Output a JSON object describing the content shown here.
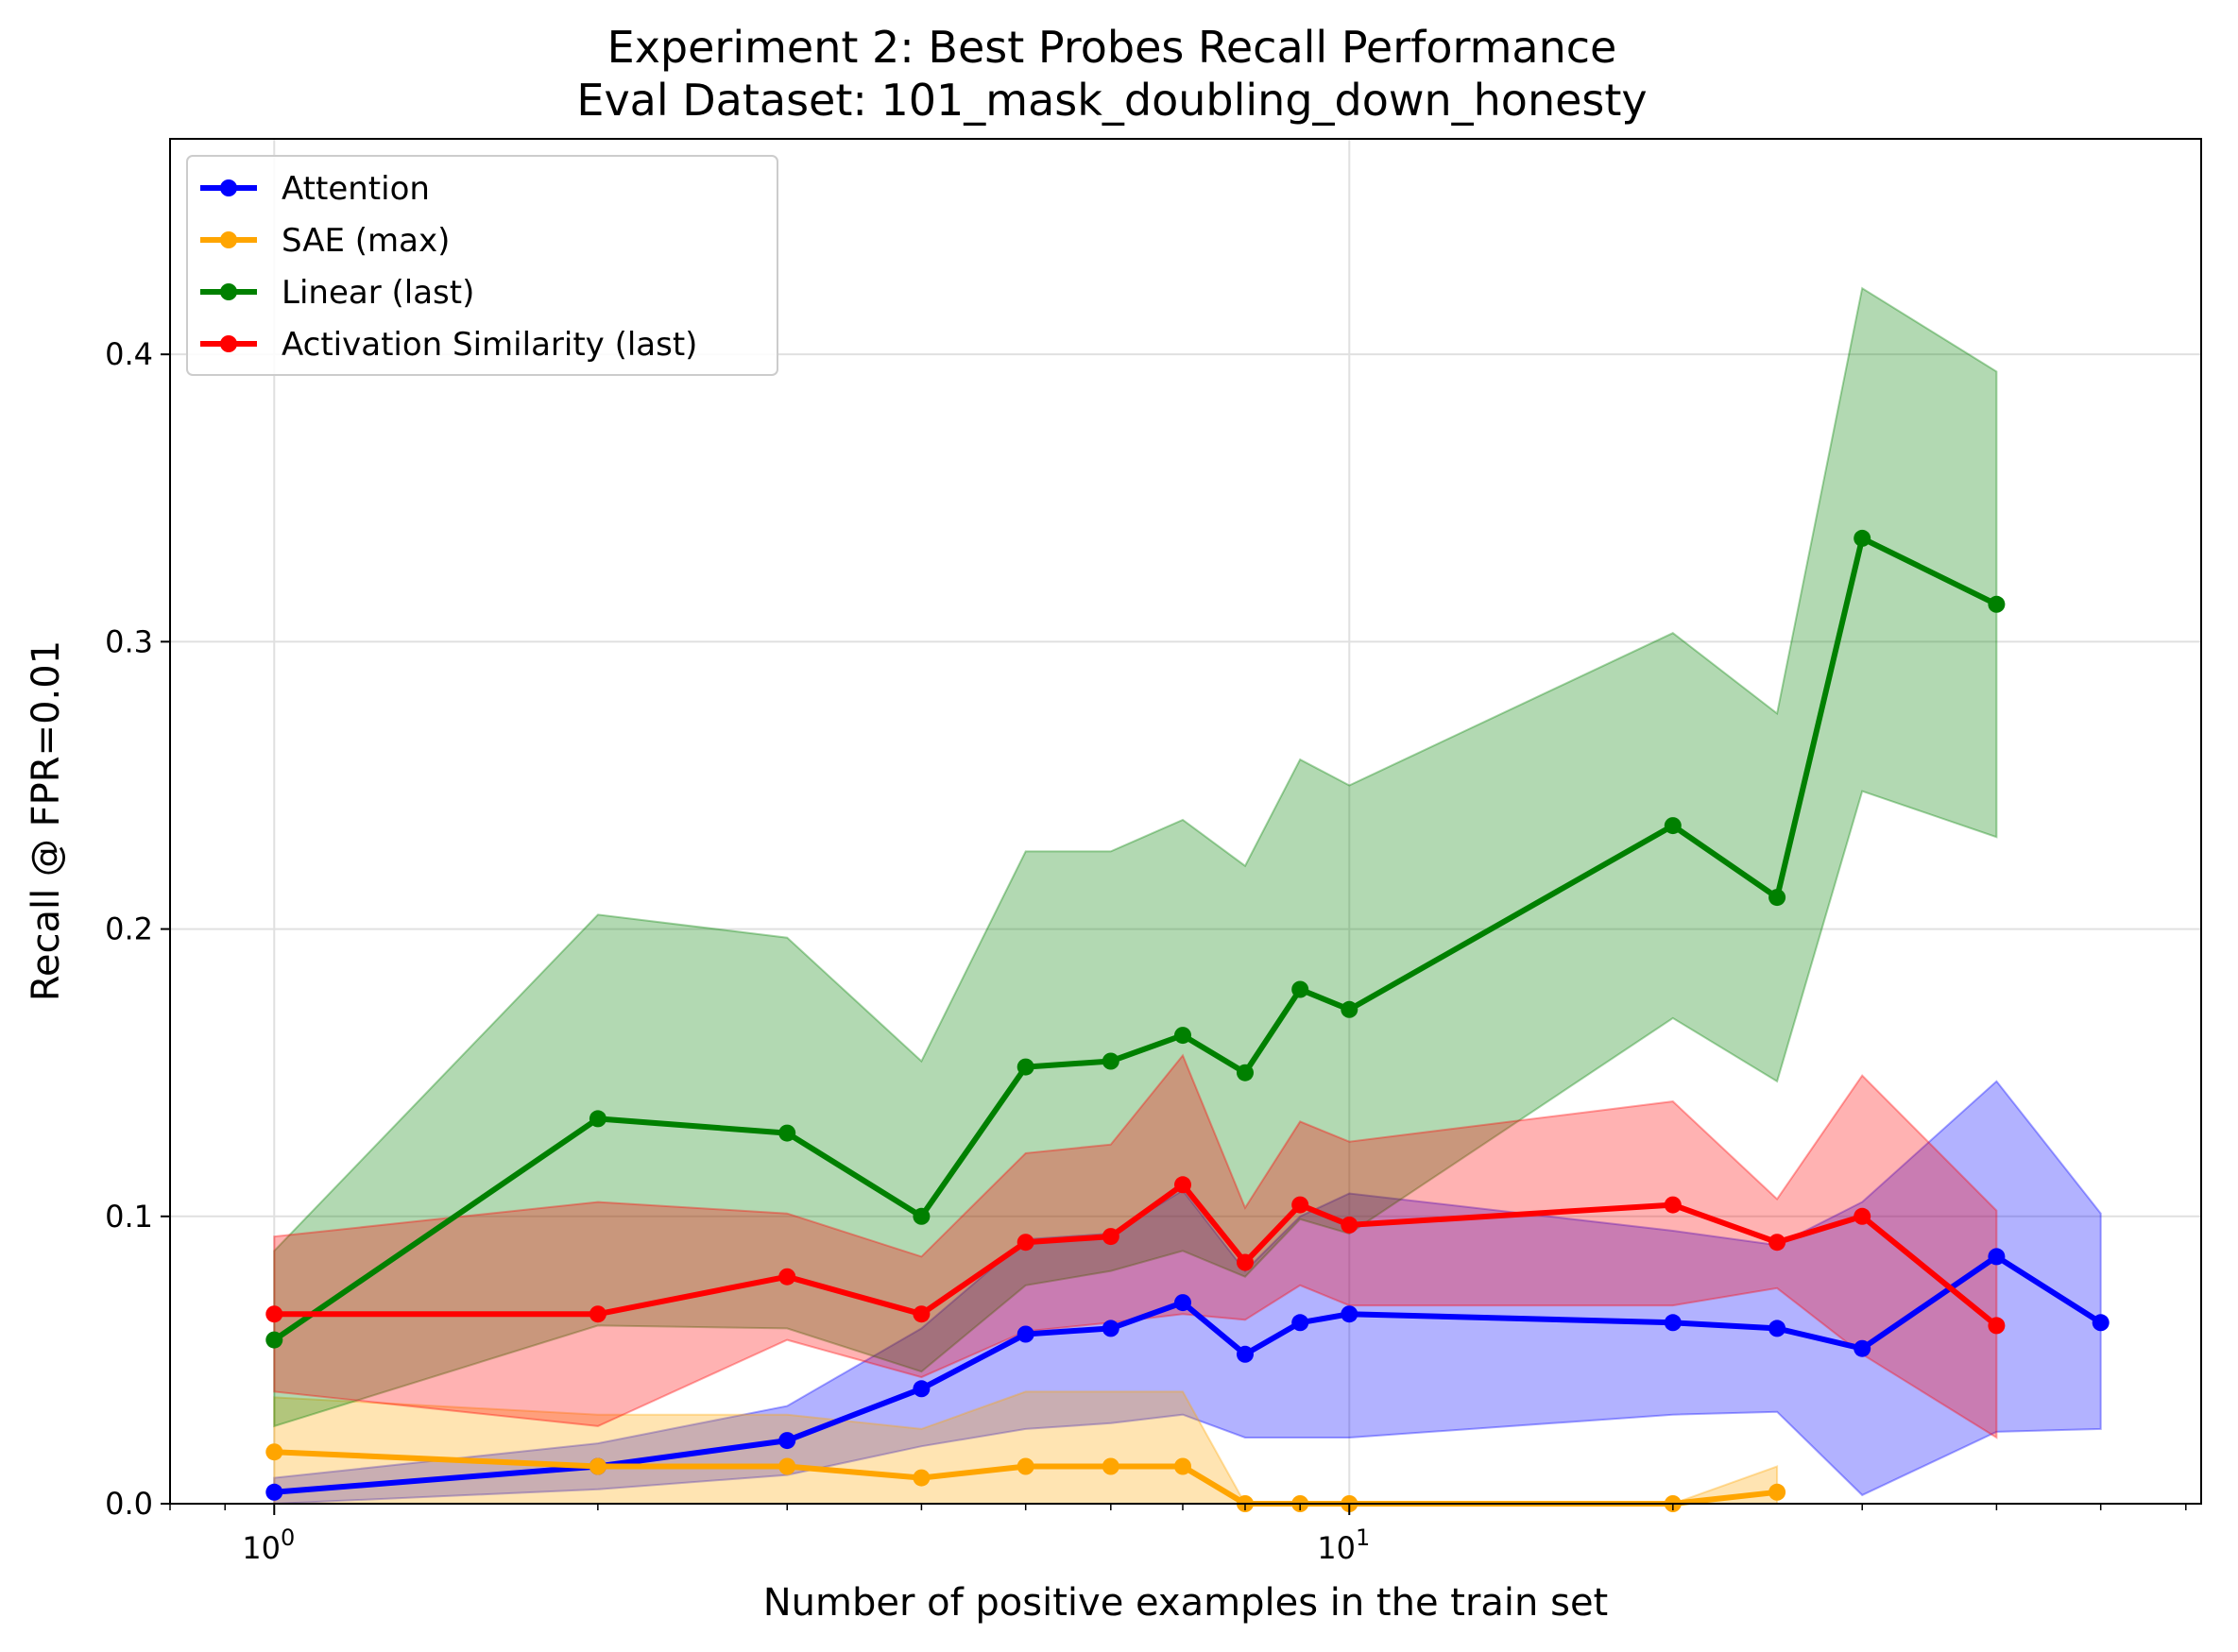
{
  "chart_data": {
    "type": "line",
    "title": "Experiment 2: Best Probes Recall Performance",
    "subtitle": "Eval Dataset: 101_mask_doubling_down_honesty",
    "xlabel": "Number of positive examples in the train set",
    "ylabel": "Recall @ FPR=0.01",
    "xscale": "log",
    "xlim": [
      0.8,
      62
    ],
    "ylim": [
      0,
      0.475
    ],
    "x_ticks": [
      {
        "value": 1,
        "base": "10",
        "exp": "0"
      },
      {
        "value": 10,
        "base": "10",
        "exp": "1"
      }
    ],
    "y_ticks": [
      {
        "value": 0.0,
        "label": "0.0"
      },
      {
        "value": 0.1,
        "label": "0.1"
      },
      {
        "value": 0.2,
        "label": "0.2"
      },
      {
        "value": 0.3,
        "label": "0.3"
      },
      {
        "value": 0.4,
        "label": "0.4"
      }
    ],
    "grid": true,
    "legend_position": "top-left",
    "series": [
      {
        "name": "Attention",
        "color": "#0000ff",
        "x": [
          1,
          2,
          3,
          4,
          5,
          6,
          7,
          8,
          9,
          10,
          20,
          25,
          30,
          40,
          50
        ],
        "y": [
          0.004,
          0.013,
          0.022,
          0.04,
          0.059,
          0.061,
          0.07,
          0.052,
          0.063,
          0.066,
          0.063,
          0.061,
          0.054,
          0.086,
          0.063
        ],
        "lower": [
          0.0,
          0.005,
          0.01,
          0.02,
          0.026,
          0.028,
          0.031,
          0.023,
          0.023,
          0.023,
          0.031,
          0.032,
          0.003,
          0.025,
          0.026
        ],
        "upper": [
          0.009,
          0.021,
          0.034,
          0.061,
          0.092,
          0.094,
          0.109,
          0.081,
          0.1,
          0.108,
          0.095,
          0.09,
          0.105,
          0.147,
          0.101
        ]
      },
      {
        "name": "SAE (max)",
        "color": "#ffa500",
        "x": [
          1,
          2,
          3,
          4,
          5,
          6,
          7,
          8,
          9,
          10,
          20,
          25
        ],
        "y": [
          0.018,
          0.013,
          0.013,
          0.009,
          0.013,
          0.013,
          0.013,
          0.0,
          0.0,
          0.0,
          0.0,
          0.004
        ],
        "lower": [
          0.0,
          0.0,
          0.0,
          0.0,
          0.0,
          0.0,
          0.0,
          0.0,
          0.0,
          0.0,
          0.0,
          0.0
        ],
        "upper": [
          0.037,
          0.031,
          0.031,
          0.026,
          0.039,
          0.039,
          0.039,
          0.0,
          0.0,
          0.0,
          0.0,
          0.013
        ]
      },
      {
        "name": "Linear (last)",
        "color": "#008000",
        "x": [
          1,
          2,
          3,
          4,
          5,
          6,
          7,
          8,
          9,
          10,
          20,
          25,
          30,
          40
        ],
        "y": [
          0.057,
          0.134,
          0.129,
          0.1,
          0.152,
          0.154,
          0.163,
          0.15,
          0.179,
          0.172,
          0.236,
          0.211,
          0.336,
          0.313
        ],
        "lower": [
          0.027,
          0.062,
          0.061,
          0.046,
          0.076,
          0.081,
          0.088,
          0.079,
          0.099,
          0.094,
          0.169,
          0.147,
          0.248,
          0.232
        ],
        "upper": [
          0.088,
          0.205,
          0.197,
          0.154,
          0.227,
          0.227,
          0.238,
          0.222,
          0.259,
          0.25,
          0.303,
          0.275,
          0.423,
          0.394
        ]
      },
      {
        "name": "Activation Similarity (last)",
        "color": "#ff0000",
        "x": [
          1,
          2,
          3,
          4,
          5,
          6,
          7,
          8,
          9,
          10,
          20,
          25,
          30,
          40
        ],
        "y": [
          0.066,
          0.066,
          0.079,
          0.066,
          0.091,
          0.093,
          0.111,
          0.084,
          0.104,
          0.097,
          0.104,
          0.091,
          0.1,
          0.062
        ],
        "lower": [
          0.039,
          0.027,
          0.057,
          0.044,
          0.06,
          0.063,
          0.066,
          0.064,
          0.076,
          0.069,
          0.069,
          0.075,
          0.052,
          0.023
        ],
        "upper": [
          0.093,
          0.105,
          0.101,
          0.086,
          0.122,
          0.125,
          0.156,
          0.103,
          0.133,
          0.126,
          0.14,
          0.106,
          0.149,
          0.102
        ]
      }
    ]
  }
}
